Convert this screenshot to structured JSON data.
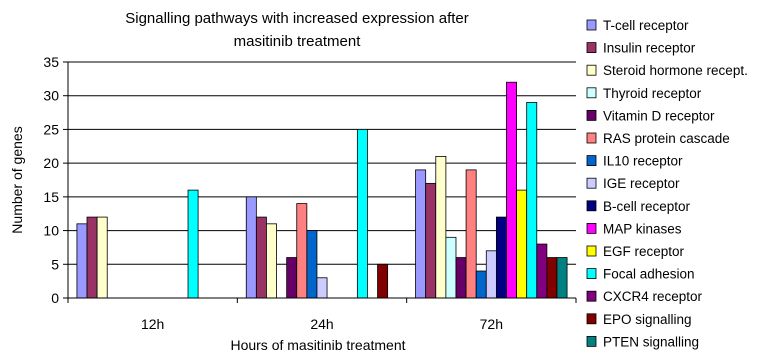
{
  "chart_data": {
    "type": "bar",
    "title_lines": [
      "Signalling pathways with increased expression after",
      "masitinib treatment"
    ],
    "xlabel": "Hours of masitinib treatment",
    "ylabel": "Number of genes",
    "categories": [
      "12h",
      "24h",
      "72h"
    ],
    "ylim": [
      0,
      35
    ],
    "yticks": [
      0,
      5,
      10,
      15,
      20,
      25,
      30,
      35
    ],
    "grid": true,
    "legend_position": "right",
    "series": [
      {
        "name": "T-cell receptor",
        "color": "#9999ff",
        "values": [
          11,
          15,
          19
        ]
      },
      {
        "name": "Insulin receptor",
        "color": "#993366",
        "values": [
          12,
          12,
          17
        ]
      },
      {
        "name": "Steroid hormone recept.",
        "color": "#ffffcc",
        "values": [
          12,
          11,
          21
        ]
      },
      {
        "name": "Thyroid receptor",
        "color": "#ccffff",
        "values": [
          0,
          0,
          9
        ]
      },
      {
        "name": "Vitamin D receptor",
        "color": "#660066",
        "values": [
          0,
          6,
          6
        ]
      },
      {
        "name": "RAS protein cascade",
        "color": "#ff8080",
        "values": [
          0,
          14,
          19
        ]
      },
      {
        "name": "IL10 receptor",
        "color": "#0066cc",
        "values": [
          0,
          10,
          4
        ]
      },
      {
        "name": "IGE receptor",
        "color": "#ccccff",
        "values": [
          0,
          3,
          7
        ]
      },
      {
        "name": "B-cell receptor",
        "color": "#000080",
        "values": [
          0,
          0,
          12
        ]
      },
      {
        "name": "MAP kinases",
        "color": "#ff00ff",
        "values": [
          0,
          0,
          32
        ]
      },
      {
        "name": "EGF receptor",
        "color": "#ffff00",
        "values": [
          0,
          0,
          16
        ]
      },
      {
        "name": "Focal adhesion",
        "color": "#00ffff",
        "values": [
          16,
          25,
          29
        ]
      },
      {
        "name": "CXCR4 receptor",
        "color": "#800080",
        "values": [
          0,
          0,
          8
        ]
      },
      {
        "name": "EPO signalling",
        "color": "#800000",
        "values": [
          0,
          5,
          6
        ]
      },
      {
        "name": "PTEN signalling",
        "color": "#008080",
        "values": [
          0,
          0,
          6
        ]
      }
    ]
  }
}
